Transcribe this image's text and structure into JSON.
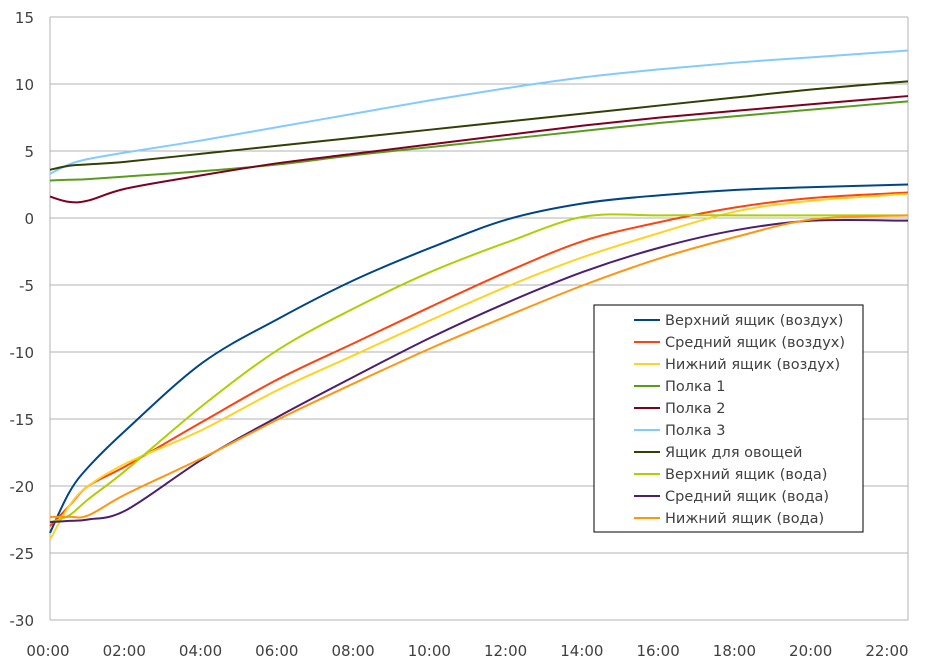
{
  "chart_data": {
    "type": "line",
    "title": "",
    "xlabel": "",
    "ylabel": "",
    "xlim": [
      0,
      22.5
    ],
    "ylim": [
      -30,
      15
    ],
    "y_ticks": [
      15,
      10,
      5,
      0,
      -5,
      -10,
      -15,
      -20,
      -25,
      -30
    ],
    "x_tick_labels": [
      "00:00",
      "02:00",
      "04:00",
      "06:00",
      "08:00",
      "10:00",
      "12:00",
      "14:00",
      "16:00",
      "18:00",
      "20:00",
      "22:00"
    ],
    "x_ticks_hours": [
      0,
      2,
      4,
      6,
      8,
      10,
      12,
      14,
      16,
      18,
      20,
      22
    ],
    "grid": "horizontal",
    "legend_position": "right",
    "x_hours": [
      0,
      0.5,
      1,
      2,
      4,
      6,
      8,
      10,
      12,
      14,
      16,
      18,
      20,
      22.5
    ],
    "series": [
      {
        "name": "Верхний ящик (воздух)",
        "color": "#004586",
        "values": [
          -23.5,
          -20.5,
          -18.6,
          -15.8,
          -10.8,
          -7.5,
          -4.6,
          -2.2,
          -0.1,
          1.1,
          1.7,
          2.1,
          2.3,
          2.5
        ]
      },
      {
        "name": "Средний ящик (воздух)",
        "color": "#ff420e",
        "values": [
          -23.0,
          -21.5,
          -20.0,
          -18.5,
          -15.2,
          -12.0,
          -9.3,
          -6.6,
          -4.0,
          -1.7,
          -0.3,
          0.8,
          1.5,
          1.9
        ]
      },
      {
        "name": "Нижний ящик (воздух)",
        "color": "#ffd320",
        "values": [
          -24.0,
          -21.5,
          -20.0,
          -18.3,
          -15.8,
          -12.8,
          -10.2,
          -7.6,
          -5.1,
          -2.9,
          -1.1,
          0.5,
          1.3,
          1.8
        ]
      },
      {
        "name": "Полка 1",
        "color": "#579d1c",
        "values": [
          2.8,
          2.85,
          2.9,
          3.1,
          3.5,
          4.0,
          4.7,
          5.3,
          5.9,
          6.5,
          7.1,
          7.6,
          8.1,
          8.7
        ]
      },
      {
        "name": "Полка 2",
        "color": "#7e0021",
        "values": [
          1.6,
          1.2,
          1.3,
          2.2,
          3.2,
          4.1,
          4.8,
          5.5,
          6.2,
          6.9,
          7.5,
          8.0,
          8.5,
          9.1
        ]
      },
      {
        "name": "Полка 3",
        "color": "#83caff",
        "values": [
          3.3,
          4.0,
          4.4,
          4.9,
          5.8,
          6.8,
          7.8,
          8.8,
          9.7,
          10.5,
          11.1,
          11.6,
          12.0,
          12.5
        ]
      },
      {
        "name": "Ящик для овощей",
        "color": "#314004",
        "values": [
          3.6,
          3.9,
          4.0,
          4.2,
          4.8,
          5.4,
          6.0,
          6.6,
          7.2,
          7.8,
          8.4,
          9.0,
          9.6,
          10.2
        ]
      },
      {
        "name": "Верхний ящик (вода)",
        "color": "#aecf00",
        "values": [
          -22.7,
          -22.2,
          -21.0,
          -18.8,
          -14.0,
          -9.8,
          -6.7,
          -4.0,
          -1.8,
          0.1,
          0.2,
          0.2,
          0.2,
          0.2
        ]
      },
      {
        "name": "Средний ящик (вода)",
        "color": "#4b1f6f",
        "values": [
          -22.7,
          -22.6,
          -22.5,
          -21.8,
          -18.0,
          -14.8,
          -11.8,
          -8.9,
          -6.3,
          -4.0,
          -2.2,
          -0.9,
          -0.2,
          -0.2
        ]
      },
      {
        "name": "Нижний ящик (вода)",
        "color": "#ff950e",
        "values": [
          -22.3,
          -22.3,
          -22.2,
          -20.6,
          -17.9,
          -15.0,
          -12.3,
          -9.7,
          -7.3,
          -5.0,
          -3.0,
          -1.4,
          -0.1,
          0.2
        ]
      }
    ]
  }
}
